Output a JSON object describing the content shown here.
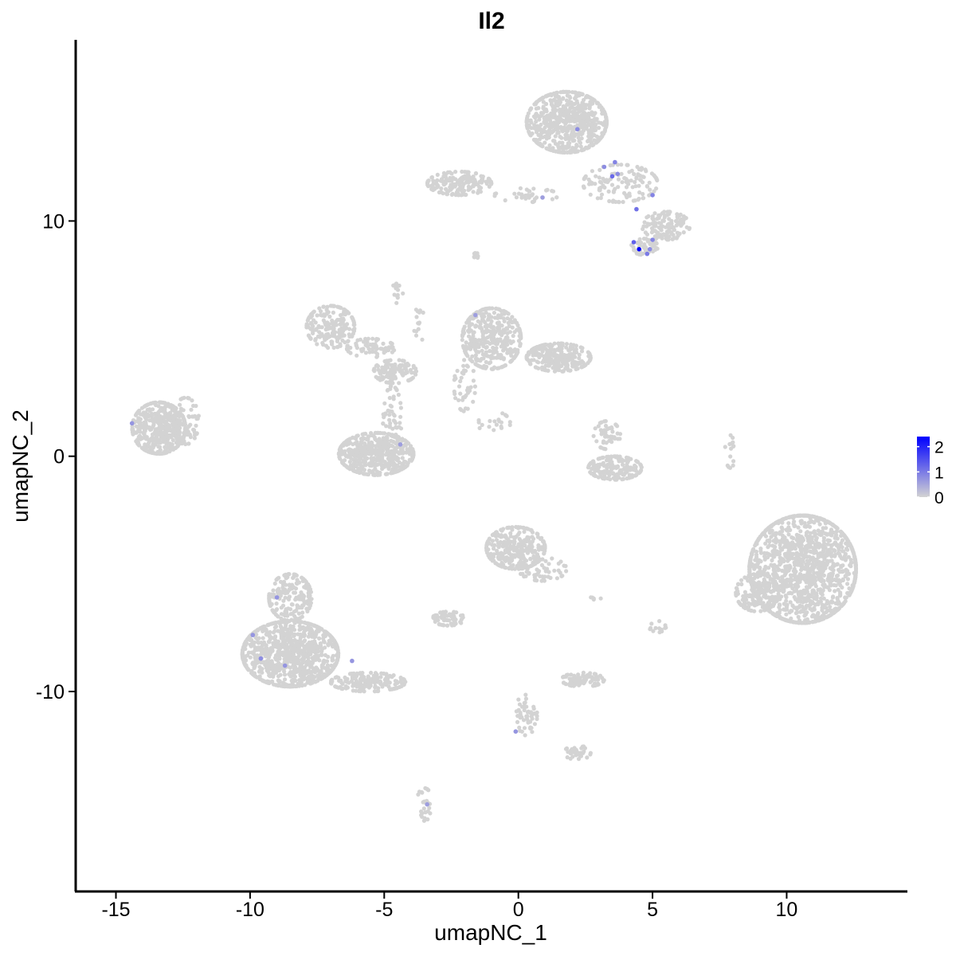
{
  "chart_data": {
    "type": "scatter",
    "title": "Il2",
    "xlabel": "umapNC_1",
    "ylabel": "umapNC_2",
    "xlim": [
      -16.5,
      14.5
    ],
    "ylim": [
      -18.5,
      17.7
    ],
    "x_ticks": [
      -15,
      -10,
      -5,
      0,
      5,
      10
    ],
    "x_tick_labels": [
      "-15",
      "-10",
      "-5",
      "0",
      "5",
      "10"
    ],
    "y_ticks": [
      -10,
      0,
      10
    ],
    "y_tick_labels": [
      "-10",
      "0",
      "10"
    ],
    "grid": false,
    "legend": {
      "position": "right",
      "labels": [
        "2",
        "1",
        "0"
      ],
      "values": [
        2,
        1,
        0
      ],
      "low_color": "#d3d3d3",
      "high_color": "#0000ff",
      "range": [
        0,
        2.4
      ]
    },
    "point_color_default": "#d3d3d3",
    "clusters": [
      {
        "cx": 1.8,
        "cy": 14.2,
        "rx": 1.5,
        "ry": 1.3,
        "n": 650
      },
      {
        "cx": 3.8,
        "cy": 11.6,
        "rx": 1.4,
        "ry": 0.8,
        "n": 130
      },
      {
        "cx": 5.5,
        "cy": 9.8,
        "rx": 0.9,
        "ry": 0.6,
        "n": 120
      },
      {
        "cx": 4.7,
        "cy": 8.9,
        "rx": 0.5,
        "ry": 0.35,
        "n": 45
      },
      {
        "cx": -2.2,
        "cy": 11.6,
        "rx": 1.2,
        "ry": 0.5,
        "n": 170
      },
      {
        "cx": 0.3,
        "cy": 11.1,
        "rx": 1.2,
        "ry": 0.3,
        "n": 35
      },
      {
        "cx": -7.0,
        "cy": 5.5,
        "rx": 0.9,
        "ry": 0.9,
        "n": 190
      },
      {
        "cx": -5.5,
        "cy": 4.6,
        "rx": 0.9,
        "ry": 0.4,
        "n": 70
      },
      {
        "cx": -4.6,
        "cy": 3.6,
        "rx": 0.8,
        "ry": 0.5,
        "n": 110
      },
      {
        "cx": -4.7,
        "cy": 1.6,
        "rx": 0.35,
        "ry": 1.4,
        "n": 60
      },
      {
        "cx": -5.3,
        "cy": 0.1,
        "rx": 1.4,
        "ry": 0.9,
        "n": 520
      },
      {
        "cx": -1.0,
        "cy": 5.0,
        "rx": 1.1,
        "ry": 1.3,
        "n": 380
      },
      {
        "cx": 1.5,
        "cy": 4.2,
        "rx": 1.2,
        "ry": 0.6,
        "n": 260
      },
      {
        "cx": -2.0,
        "cy": 3.0,
        "rx": 0.4,
        "ry": 1.1,
        "n": 40
      },
      {
        "cx": 3.6,
        "cy": -0.5,
        "rx": 1.0,
        "ry": 0.5,
        "n": 180
      },
      {
        "cx": 3.3,
        "cy": 0.9,
        "rx": 0.5,
        "ry": 0.6,
        "n": 50
      },
      {
        "cx": -13.4,
        "cy": 1.2,
        "rx": 1.0,
        "ry": 1.1,
        "n": 470
      },
      {
        "cx": -12.4,
        "cy": 1.5,
        "rx": 0.5,
        "ry": 1.0,
        "n": 70
      },
      {
        "cx": 10.6,
        "cy": -4.8,
        "rx": 2.0,
        "ry": 2.3,
        "n": 1400
      },
      {
        "cx": 8.9,
        "cy": -5.8,
        "rx": 0.8,
        "ry": 0.8,
        "n": 160
      },
      {
        "cx": -0.1,
        "cy": -3.9,
        "rx": 1.1,
        "ry": 0.9,
        "n": 300
      },
      {
        "cx": 0.9,
        "cy": -4.8,
        "rx": 0.9,
        "ry": 0.5,
        "n": 60
      },
      {
        "cx": -8.5,
        "cy": -8.4,
        "rx": 1.8,
        "ry": 1.4,
        "n": 950
      },
      {
        "cx": -8.5,
        "cy": -6.0,
        "rx": 0.8,
        "ry": 1.0,
        "n": 190
      },
      {
        "cx": -5.6,
        "cy": -9.6,
        "rx": 1.4,
        "ry": 0.4,
        "n": 170
      },
      {
        "cx": -2.6,
        "cy": -6.9,
        "rx": 0.6,
        "ry": 0.3,
        "n": 70
      },
      {
        "cx": 2.4,
        "cy": -9.5,
        "rx": 0.8,
        "ry": 0.3,
        "n": 90
      },
      {
        "cx": 0.3,
        "cy": -11.0,
        "rx": 0.4,
        "ry": 1.0,
        "n": 50
      },
      {
        "cx": 2.2,
        "cy": -12.6,
        "rx": 0.5,
        "ry": 0.3,
        "n": 35
      },
      {
        "cx": -3.5,
        "cy": -14.8,
        "rx": 0.3,
        "ry": 0.7,
        "n": 30
      },
      {
        "cx": 7.9,
        "cy": 0.2,
        "rx": 0.2,
        "ry": 0.7,
        "n": 15
      },
      {
        "cx": -4.5,
        "cy": 7.0,
        "rx": 0.2,
        "ry": 0.5,
        "n": 14
      },
      {
        "cx": -3.7,
        "cy": 5.6,
        "rx": 0.2,
        "ry": 0.8,
        "n": 14
      },
      {
        "cx": -1.5,
        "cy": 8.6,
        "rx": 0.2,
        "ry": 0.2,
        "n": 8
      },
      {
        "cx": 5.2,
        "cy": -7.3,
        "rx": 0.3,
        "ry": 0.3,
        "n": 14
      },
      {
        "cx": 2.9,
        "cy": -6.0,
        "rx": 0.2,
        "ry": 0.1,
        "n": 5
      },
      {
        "cx": -0.9,
        "cy": 1.4,
        "rx": 0.6,
        "ry": 0.5,
        "n": 20
      }
    ],
    "expressing_points": [
      {
        "x": 4.5,
        "y": 8.8,
        "value": 2.4
      },
      {
        "x": 4.3,
        "y": 9.1,
        "value": 1.3
      },
      {
        "x": 4.8,
        "y": 8.6,
        "value": 1.0
      },
      {
        "x": 5.0,
        "y": 9.2,
        "value": 0.9
      },
      {
        "x": 4.9,
        "y": 8.8,
        "value": 0.8
      },
      {
        "x": 4.4,
        "y": 10.5,
        "value": 1.1
      },
      {
        "x": 3.5,
        "y": 11.9,
        "value": 1.2
      },
      {
        "x": 3.6,
        "y": 12.5,
        "value": 0.9
      },
      {
        "x": 3.2,
        "y": 12.3,
        "value": 0.8
      },
      {
        "x": 3.7,
        "y": 12.0,
        "value": 0.8
      },
      {
        "x": 5.0,
        "y": 11.1,
        "value": 0.9
      },
      {
        "x": 2.2,
        "y": 13.9,
        "value": 0.8
      },
      {
        "x": 0.9,
        "y": 11.0,
        "value": 0.6
      },
      {
        "x": -1.6,
        "y": 6.0,
        "value": 0.6
      },
      {
        "x": -14.4,
        "y": 1.4,
        "value": 0.7
      },
      {
        "x": -4.4,
        "y": 0.5,
        "value": 0.6
      },
      {
        "x": -9.0,
        "y": -6.0,
        "value": 0.7
      },
      {
        "x": -9.9,
        "y": -7.6,
        "value": 0.7
      },
      {
        "x": -9.6,
        "y": -8.6,
        "value": 0.8
      },
      {
        "x": -8.7,
        "y": -8.9,
        "value": 0.7
      },
      {
        "x": -6.2,
        "y": -8.7,
        "value": 0.7
      },
      {
        "x": -0.1,
        "y": -11.7,
        "value": 0.7
      },
      {
        "x": -3.4,
        "y": -14.8,
        "value": 0.6
      }
    ]
  }
}
